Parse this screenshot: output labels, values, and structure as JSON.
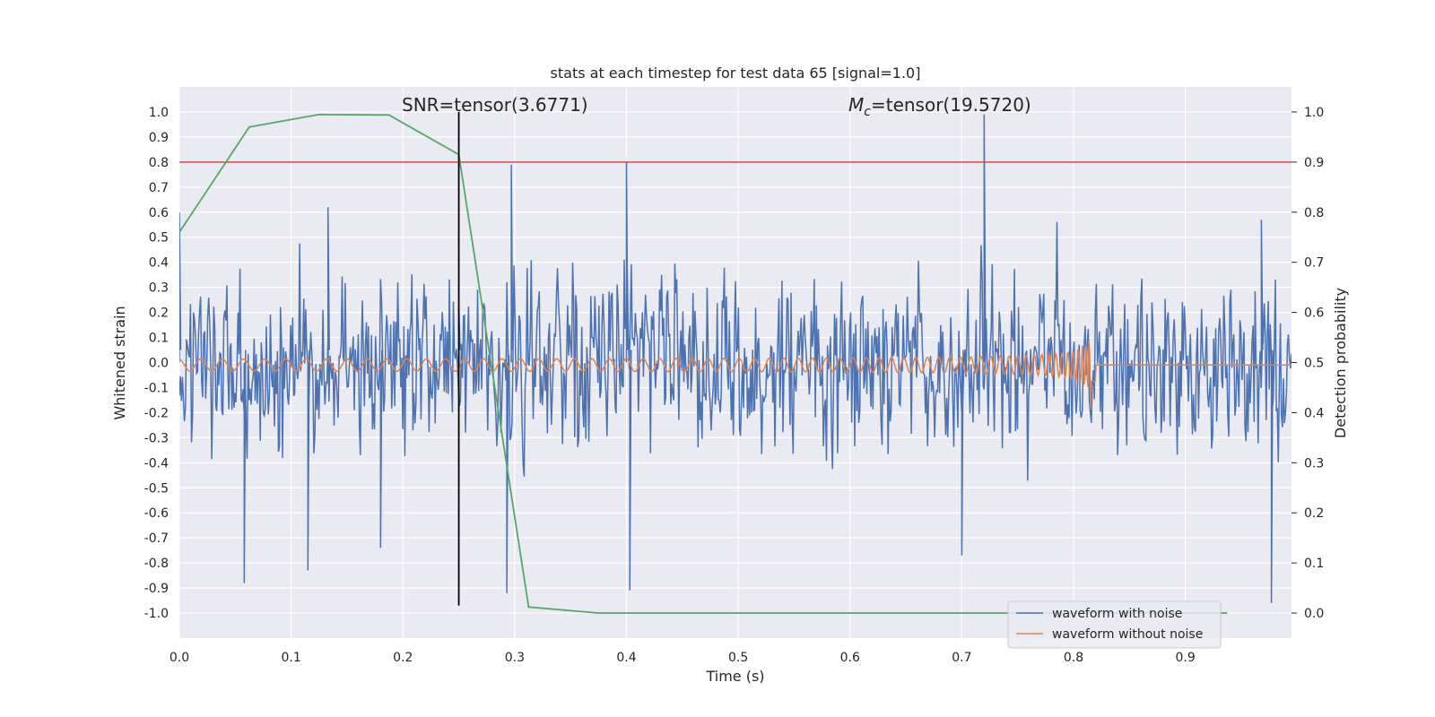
{
  "chart_data": {
    "type": "line",
    "title": "stats at each timestep for test data 65 [signal=1.0]",
    "xlabel": "Time (s)",
    "ylabel_left": "Whitened strain",
    "ylabel_right": "Detection probability",
    "xlim": [
      0.0,
      0.995
    ],
    "ylim_left": [
      -1.1,
      1.1
    ],
    "ylim_right": [
      -0.05,
      1.05
    ],
    "x_ticks": [
      "0.0",
      "0.1",
      "0.2",
      "0.3",
      "0.4",
      "0.5",
      "0.6",
      "0.7",
      "0.8",
      "0.9"
    ],
    "y_ticks_left": [
      "1.0",
      "0.9",
      "0.8",
      "0.7",
      "0.6",
      "0.5",
      "0.4",
      "0.3",
      "0.2",
      "0.1",
      "0.0",
      "-0.1",
      "-0.2",
      "-0.3",
      "-0.4",
      "-0.5",
      "-0.6",
      "-0.7",
      "-0.8",
      "-0.9",
      "-1.0"
    ],
    "y_ticks_right": [
      "1.0",
      "0.9",
      "0.8",
      "0.7",
      "0.6",
      "0.5",
      "0.4",
      "0.3",
      "0.2",
      "0.1",
      "0.0"
    ],
    "grid": true,
    "legend_position": "lower-right",
    "annotations": {
      "snr_prefix": "SNR=tensor(3.6771)",
      "mc_symbol": "M",
      "mc_subscript": "c",
      "mc_value": "=tensor(19.5720)"
    },
    "threshold": {
      "axis": "right",
      "value": 0.9,
      "color": "#c44e52"
    },
    "marker_line": {
      "x": 0.25,
      "y_from": -0.97,
      "y_to": 1.0,
      "color": "#000000"
    },
    "series": [
      {
        "name": "waveform with noise",
        "axis": "left",
        "color": "#4c72b0",
        "generated": "dense noise, ~1.0 Hz-sampled at 2048 Hz; visible extremes",
        "peaks": [
          {
            "x": 0.0,
            "y": 0.6
          },
          {
            "x": 0.058,
            "y": -0.88
          },
          {
            "x": 0.115,
            "y": -0.83
          },
          {
            "x": 0.133,
            "y": 0.62
          },
          {
            "x": 0.18,
            "y": -0.74
          },
          {
            "x": 0.25,
            "y": 0.22
          },
          {
            "x": 0.293,
            "y": -0.92
          },
          {
            "x": 0.297,
            "y": 0.79
          },
          {
            "x": 0.4,
            "y": 0.8
          },
          {
            "x": 0.403,
            "y": -0.91
          },
          {
            "x": 0.72,
            "y": 0.99
          },
          {
            "x": 0.7,
            "y": -0.77
          },
          {
            "x": 0.977,
            "y": -0.96
          },
          {
            "x": 0.968,
            "y": 0.57
          }
        ]
      },
      {
        "name": "waveform without noise",
        "axis": "left",
        "color": "#dd8452",
        "chirp": {
          "amplitude_start": 0.02,
          "amplitude_peak": 0.23,
          "t_merger": 0.813,
          "t_end": 0.82
        }
      },
      {
        "name": "",
        "axis": "right",
        "color": "#55a868",
        "x": [
          0.0,
          0.0625,
          0.125,
          0.1875,
          0.25,
          0.3125,
          0.375,
          0.4375,
          0.5,
          0.5625,
          0.625,
          0.6875,
          0.75,
          0.8125,
          0.875,
          0.9375
        ],
        "y": [
          0.76,
          0.97,
          0.995,
          0.994,
          0.915,
          0.012,
          0.0,
          0.0,
          0.0,
          0.0,
          0.0,
          0.0,
          0.0,
          0.0,
          0.0,
          0.0
        ]
      }
    ]
  },
  "legend": {
    "noise_label": "waveform with noise",
    "clean_label": "waveform without noise"
  }
}
